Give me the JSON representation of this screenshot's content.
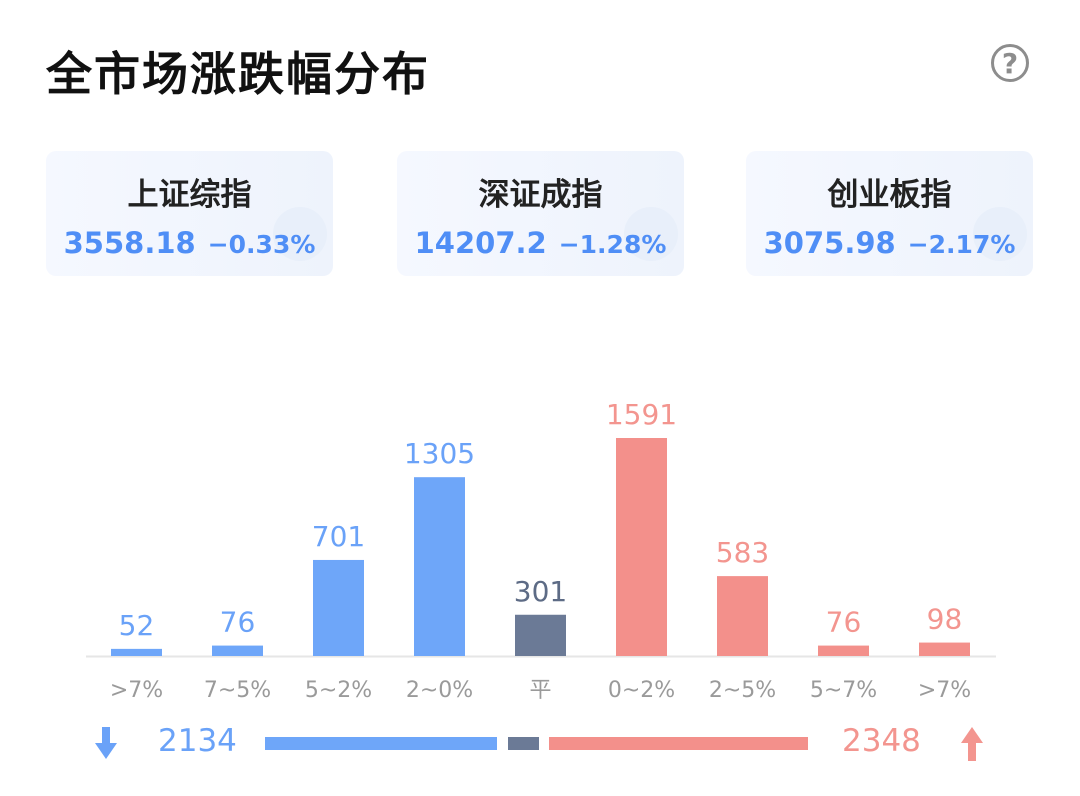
{
  "title": "全市场涨跌幅分布",
  "help_glyph": "?",
  "indices": [
    {
      "name": "上证综指",
      "value": "3558.18",
      "change": "−0.33%"
    },
    {
      "name": "深证成指",
      "value": "14207.2",
      "change": "−1.28%"
    },
    {
      "name": "创业板指",
      "value": "3075.98",
      "change": "−2.17%"
    }
  ],
  "colors": {
    "down": "#6ea6f9",
    "flat": "#6b7a96",
    "up": "#f3908b",
    "down_text": "#6aa2f8",
    "up_text": "#f3958f",
    "flat_text": "#5d6b85",
    "axis": "#e6e6e6",
    "tick": "#9a9a9a"
  },
  "chart_data": {
    "type": "bar",
    "categories": [
      ">7%",
      "7~5%",
      "5~2%",
      "2~0%",
      "平",
      "0~2%",
      "2~5%",
      "5~7%",
      ">7%"
    ],
    "values": [
      52,
      76,
      701,
      1305,
      301,
      1591,
      583,
      76,
      98
    ],
    "groups": [
      "down",
      "down",
      "down",
      "down",
      "flat",
      "up",
      "up",
      "up",
      "up"
    ],
    "ylim": [
      0,
      1591
    ]
  },
  "summary": {
    "down_count": "2134",
    "up_count": "2348",
    "down_icon": "down-arrow-icon",
    "up_icon": "up-arrow-icon"
  }
}
